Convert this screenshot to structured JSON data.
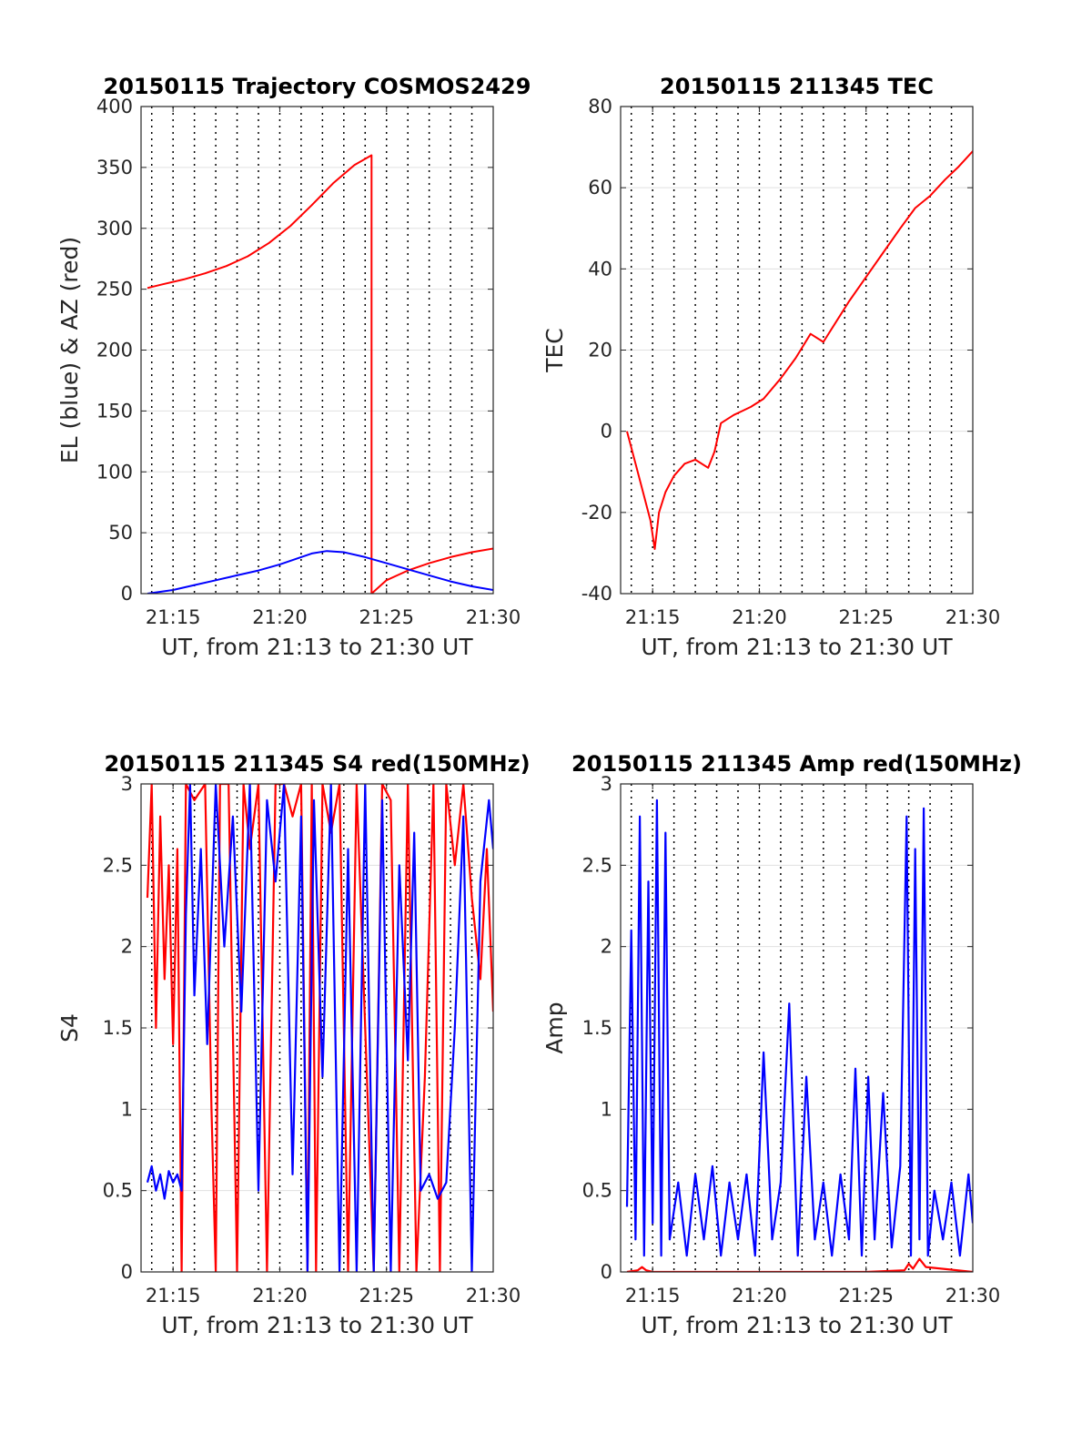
{
  "chart_data": [
    {
      "type": "line",
      "title": "20150115 Trajectory COSMOS2429",
      "xlabel": "UT, from 21:13 to 21:30 UT",
      "ylabel": "EL (blue) & AZ (red)",
      "xlim": [
        13.5,
        30
      ],
      "ylim": [
        0,
        400
      ],
      "x_ticks": [
        15,
        20,
        25,
        30
      ],
      "x_tick_labels": [
        "21:15",
        "21:20",
        "21:25",
        "21:30"
      ],
      "y_ticks": [
        0,
        50,
        100,
        150,
        200,
        250,
        300,
        350,
        400
      ],
      "y_tick_labels": [
        "0",
        "50",
        "100",
        "150",
        "200",
        "250",
        "300",
        "350",
        "400"
      ],
      "grid": true,
      "series": [
        {
          "color": "#ff0000",
          "x": [
            13.8,
            14.5,
            15.5,
            16.5,
            17.5,
            18.5,
            19.5,
            20.5,
            21.5,
            22.5,
            23.5,
            24.3,
            24.3,
            25,
            26,
            27,
            28,
            29,
            30
          ],
          "y": [
            251,
            254,
            258,
            263,
            269,
            277,
            288,
            302,
            319,
            337,
            352,
            360,
            0,
            11,
            19,
            25,
            30,
            34,
            37
          ]
        },
        {
          "color": "#0000ff",
          "x": [
            13.8,
            15,
            16,
            17,
            18,
            19,
            20,
            21,
            21.5,
            22.2,
            23,
            24,
            25,
            26,
            27,
            28,
            29,
            30
          ],
          "y": [
            0,
            3,
            7,
            11,
            15,
            19,
            24,
            30,
            33,
            35,
            34,
            30,
            25,
            20,
            15,
            10,
            6,
            3
          ]
        }
      ]
    },
    {
      "type": "line",
      "title": "20150115 211345 TEC",
      "xlabel": "UT, from 21:13 to 21:30 UT",
      "ylabel": "TEC",
      "xlim": [
        13.5,
        30
      ],
      "ylim": [
        -40,
        80
      ],
      "x_ticks": [
        15,
        20,
        25,
        30
      ],
      "x_tick_labels": [
        "21:15",
        "21:20",
        "21:25",
        "21:30"
      ],
      "y_ticks": [
        -40,
        -20,
        0,
        20,
        40,
        60,
        80
      ],
      "y_tick_labels": [
        "-40",
        "-20",
        "0",
        "20",
        "40",
        "60",
        "80"
      ],
      "grid": true,
      "series": [
        {
          "color": "#ff0000",
          "x": [
            13.8,
            14.2,
            14.6,
            14.9,
            15.1,
            15.3,
            15.6,
            16,
            16.5,
            17,
            17.6,
            17.9,
            18.2,
            18.8,
            19.2,
            19.6,
            20.2,
            21,
            21.7,
            22.4,
            23,
            23.6,
            24.2,
            25,
            25.8,
            26.6,
            27.3,
            28,
            28.7,
            29.3,
            30
          ],
          "y": [
            0,
            -8,
            -16,
            -22,
            -29,
            -20,
            -15,
            -11,
            -8,
            -7,
            -9,
            -5,
            2,
            4,
            5,
            6,
            8,
            13,
            18,
            24,
            22,
            27,
            32,
            38,
            44,
            50,
            55,
            58,
            62,
            65,
            69
          ]
        }
      ]
    },
    {
      "type": "line",
      "title": "20150115 211345 S4 red(150MHz)",
      "xlabel": "UT, from 21:13 to 21:30 UT",
      "ylabel": "S4",
      "xlim": [
        13.5,
        30
      ],
      "ylim": [
        0,
        3
      ],
      "x_ticks": [
        15,
        20,
        25,
        30
      ],
      "x_tick_labels": [
        "21:15",
        "21:20",
        "21:25",
        "21:30"
      ],
      "y_ticks": [
        0,
        0.5,
        1,
        1.5,
        2,
        2.5,
        3
      ],
      "y_tick_labels": [
        "0",
        "0.5",
        "1",
        "1.5",
        "2",
        "2.5",
        "3"
      ],
      "grid": true,
      "series": [
        {
          "color": "#ff0000",
          "x": [
            13.8,
            14.0,
            14.2,
            14.4,
            14.6,
            14.8,
            15.0,
            15.2,
            15.4,
            15.6,
            16.0,
            16.5,
            16.8,
            17.0,
            17.2,
            17.6,
            18.0,
            18.3,
            18.6,
            19.0,
            19.4,
            19.8,
            20.2,
            20.6,
            21.0,
            21.3,
            21.5,
            21.7,
            22.0,
            22.4,
            22.8,
            23.2,
            23.6,
            24.0,
            24.4,
            24.8,
            25.2,
            25.6,
            26.0,
            26.4,
            26.8,
            27.2,
            27.5,
            27.8,
            28.2,
            28.6,
            29.0,
            29.4,
            29.7,
            30.0
          ],
          "y": [
            2.3,
            3.0,
            1.5,
            2.8,
            1.8,
            2.5,
            1.4,
            2.6,
            0.0,
            3.0,
            2.9,
            3.0,
            1.0,
            0.0,
            3.0,
            3.0,
            0.0,
            3.0,
            2.6,
            3.0,
            0.0,
            3.0,
            3.0,
            2.8,
            3.0,
            0.0,
            3.0,
            0.0,
            3.0,
            2.7,
            3.0,
            0.0,
            3.0,
            1.5,
            0.0,
            3.0,
            2.9,
            0.0,
            3.0,
            0.0,
            1.2,
            3.0,
            0.0,
            3.0,
            2.5,
            3.0,
            2.3,
            1.8,
            2.6,
            1.6
          ]
        },
        {
          "color": "#0000ff",
          "x": [
            13.8,
            14.0,
            14.2,
            14.4,
            14.6,
            14.8,
            15.0,
            15.2,
            15.4,
            15.6,
            15.8,
            16.0,
            16.3,
            16.6,
            17.0,
            17.4,
            17.8,
            18.2,
            18.6,
            19.0,
            19.4,
            19.8,
            20.2,
            20.6,
            21.0,
            21.3,
            21.6,
            22.0,
            22.4,
            22.8,
            23.2,
            23.6,
            24.0,
            24.4,
            24.8,
            25.2,
            25.6,
            26.0,
            26.3,
            26.6,
            27.0,
            27.4,
            27.8,
            28.2,
            28.6,
            29.0,
            29.4,
            29.8,
            30.0
          ],
          "y": [
            0.55,
            0.65,
            0.5,
            0.6,
            0.45,
            0.62,
            0.55,
            0.6,
            0.5,
            2.2,
            3.0,
            1.7,
            2.6,
            1.4,
            3.0,
            2.0,
            2.8,
            1.6,
            3.0,
            0.5,
            2.9,
            2.4,
            3.0,
            0.6,
            2.8,
            0.0,
            2.9,
            1.2,
            3.0,
            0.0,
            2.6,
            0.0,
            3.0,
            0.0,
            2.9,
            0.0,
            2.5,
            1.3,
            2.7,
            0.5,
            0.6,
            0.45,
            0.55,
            1.5,
            2.8,
            0.0,
            2.4,
            2.9,
            2.6
          ]
        }
      ]
    },
    {
      "type": "line",
      "title": "20150115 211345 Amp red(150MHz)",
      "xlabel": "UT, from 21:13 to 21:30 UT",
      "ylabel": "Amp",
      "xlim": [
        13.5,
        30
      ],
      "ylim": [
        0,
        3
      ],
      "x_ticks": [
        15,
        20,
        25,
        30
      ],
      "x_tick_labels": [
        "21:15",
        "21:20",
        "21:25",
        "21:30"
      ],
      "y_ticks": [
        0,
        0.5,
        1,
        1.5,
        2,
        2.5,
        3
      ],
      "y_tick_labels": [
        "0",
        "0.5",
        "1",
        "1.5",
        "2",
        "2.5",
        "3"
      ],
      "grid": true,
      "series": [
        {
          "color": "#ff0000",
          "x": [
            13.8,
            14.3,
            14.5,
            14.7,
            15.0,
            20.0,
            25.0,
            26.8,
            27.0,
            27.2,
            27.5,
            27.8,
            30.0
          ],
          "y": [
            0.0,
            0.01,
            0.03,
            0.01,
            0.0,
            0.0,
            0.0,
            0.01,
            0.05,
            0.02,
            0.08,
            0.03,
            0.0
          ]
        },
        {
          "color": "#0000ff",
          "x": [
            13.8,
            14.0,
            14.2,
            14.4,
            14.6,
            14.8,
            15.0,
            15.2,
            15.4,
            15.6,
            15.8,
            16.2,
            16.6,
            17.0,
            17.4,
            17.8,
            18.2,
            18.6,
            19.0,
            19.4,
            19.8,
            20.2,
            20.6,
            21.0,
            21.4,
            21.8,
            22.2,
            22.6,
            23.0,
            23.4,
            23.8,
            24.2,
            24.5,
            24.8,
            25.1,
            25.4,
            25.8,
            26.2,
            26.6,
            26.9,
            27.1,
            27.3,
            27.5,
            27.7,
            27.9,
            28.2,
            28.6,
            29.0,
            29.4,
            29.8,
            30.0
          ],
          "y": [
            0.4,
            2.1,
            0.2,
            2.8,
            0.1,
            2.4,
            0.3,
            2.9,
            0.1,
            2.7,
            0.2,
            0.55,
            0.1,
            0.6,
            0.2,
            0.65,
            0.1,
            0.55,
            0.2,
            0.6,
            0.1,
            1.35,
            0.2,
            0.55,
            1.65,
            0.1,
            1.2,
            0.2,
            0.55,
            0.1,
            0.6,
            0.2,
            1.25,
            0.1,
            1.2,
            0.2,
            1.1,
            0.15,
            0.65,
            2.8,
            0.1,
            2.6,
            0.2,
            2.85,
            0.1,
            0.5,
            0.2,
            0.55,
            0.1,
            0.6,
            0.3
          ]
        }
      ]
    }
  ]
}
